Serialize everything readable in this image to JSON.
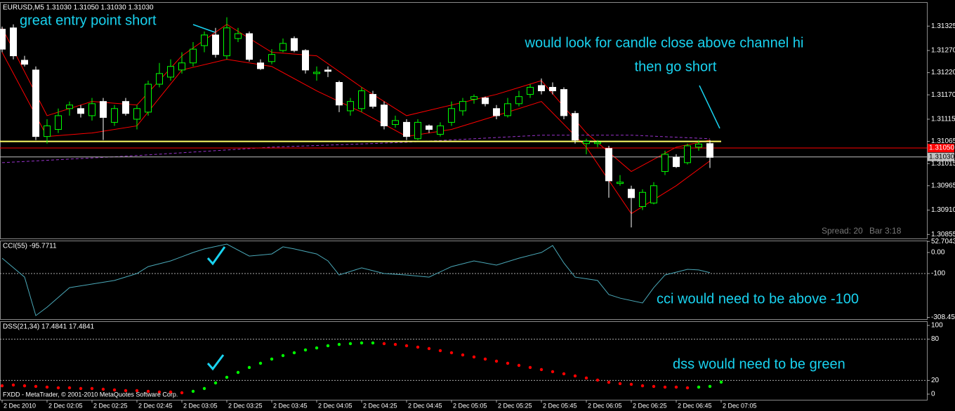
{
  "chart_data": [
    {
      "type": "candlestick",
      "title": "EURUSD,M5  1.31030 1.31050 1.31030 1.31030",
      "open": [
        1.31318,
        1.31321,
        1.31248,
        1.31226,
        1.31076,
        1.31092,
        1.31139,
        1.31139,
        1.31123,
        1.31155,
        1.31108,
        1.31155,
        1.31115,
        1.31131,
        1.31194,
        1.3121,
        1.31226,
        1.31242,
        1.31281,
        1.31305,
        1.31258,
        1.31297,
        1.31308,
        1.31242,
        1.31245,
        1.3127,
        1.31297,
        1.3127,
        1.31218,
        1.31226,
        1.31198,
        1.31134,
        1.31139,
        1.31171,
        1.31147,
        1.31103,
        1.31108,
        1.31071,
        1.311,
        1.31081,
        1.31108,
        1.31134,
        1.3116,
        1.31163,
        1.31139,
        1.31123,
        1.3115,
        1.31171,
        1.31191,
        1.31187,
        1.31182,
        1.31128,
        1.3106,
        1.3106,
        1.31049,
        1.3097,
        1.30957,
        1.30918,
        1.30926,
        1.30997,
        1.31029,
        1.31017,
        1.31052,
        1.3106
      ],
      "high": [
        1.31324,
        1.31329,
        1.31258,
        1.31234,
        1.31115,
        1.31139,
        1.31155,
        1.31147,
        1.31163,
        1.31163,
        1.31147,
        1.31163,
        1.31147,
        1.31202,
        1.31242,
        1.3125,
        1.31266,
        1.31289,
        1.31313,
        1.31321,
        1.31345,
        1.31321,
        1.31313,
        1.3125,
        1.31273,
        1.31297,
        1.31302,
        1.31273,
        1.31234,
        1.31234,
        1.31202,
        1.31163,
        1.31187,
        1.31179,
        1.31155,
        1.31123,
        1.31115,
        1.31115,
        1.31103,
        1.31108,
        1.31155,
        1.31163,
        1.31171,
        1.31166,
        1.31147,
        1.31163,
        1.31179,
        1.31194,
        1.31207,
        1.31198,
        1.31187,
        1.31134,
        1.31071,
        1.31068,
        1.31055,
        1.30989,
        1.30965,
        1.30957,
        1.30973,
        1.31044,
        1.31036,
        1.3106,
        1.31068,
        1.31068
      ],
      "low": [
        1.31266,
        1.3125,
        1.31234,
        1.31068,
        1.3106,
        1.31084,
        1.31123,
        1.31119,
        1.31112,
        1.31068,
        1.311,
        1.31123,
        1.31092,
        1.31123,
        1.31187,
        1.31202,
        1.31218,
        1.31234,
        1.31266,
        1.31254,
        1.3125,
        1.31289,
        1.31245,
        1.31226,
        1.31239,
        1.31266,
        1.31266,
        1.31218,
        1.31202,
        1.3121,
        1.31131,
        1.31123,
        1.31131,
        1.31139,
        1.31092,
        1.31096,
        1.31068,
        1.31068,
        1.31084,
        1.31076,
        1.311,
        1.31123,
        1.3115,
        1.31144,
        1.31115,
        1.31119,
        1.31144,
        1.31163,
        1.31171,
        1.31171,
        1.31115,
        1.3106,
        1.31036,
        1.31052,
        1.30938,
        1.30965,
        1.30871,
        1.3091,
        1.30923,
        1.30989,
        1.31005,
        1.31013,
        1.31044,
        1.31005
      ],
      "close": [
        1.31273,
        1.31258,
        1.31239,
        1.31076,
        1.311,
        1.31123,
        1.31147,
        1.31128,
        1.3115,
        1.31119,
        1.31139,
        1.31128,
        1.31139,
        1.31194,
        1.31218,
        1.31234,
        1.31242,
        1.31273,
        1.31305,
        1.31261,
        1.31321,
        1.31308,
        1.3125,
        1.31229,
        1.31261,
        1.31286,
        1.3127,
        1.31226,
        1.31221,
        1.31223,
        1.31147,
        1.31155,
        1.31179,
        1.31144,
        1.311,
        1.31112,
        1.31076,
        1.31108,
        1.31092,
        1.311,
        1.31139,
        1.31155,
        1.31166,
        1.3115,
        1.31123,
        1.3115,
        1.31166,
        1.31187,
        1.31179,
        1.31179,
        1.31123,
        1.31068,
        1.31065,
        1.31063,
        1.30976,
        1.30973,
        1.30938,
        1.3095,
        1.30965,
        1.31036,
        1.31008,
        1.31055,
        1.31059,
        1.31029
      ],
      "up_color": "#00ff00",
      "down_color": "#ffffff",
      "lines": [
        {
          "x": [
            0,
            4,
            8,
            12,
            16,
            20,
            24,
            28,
            32,
            36,
            40,
            44,
            48,
            52,
            56,
            60,
            63
          ],
          "values": [
            1.31321,
            1.31123,
            1.31155,
            1.31147,
            1.31258,
            1.31329,
            1.31266,
            1.31258,
            1.31187,
            1.31123,
            1.31147,
            1.31171,
            1.31202,
            1.31084,
            1.30997,
            1.31052,
            1.31068
          ],
          "color": "#ff0000"
        },
        {
          "x": [
            0,
            4,
            8,
            12,
            16,
            20,
            24,
            28,
            32,
            36,
            40,
            44,
            48,
            52,
            56,
            60,
            63
          ],
          "values": [
            1.31266,
            1.31076,
            1.31084,
            1.311,
            1.31226,
            1.3125,
            1.31234,
            1.31179,
            1.31131,
            1.31076,
            1.31092,
            1.31123,
            1.31155,
            1.31052,
            1.30902,
            1.30965,
            1.31021
          ],
          "color": "#ff0000"
        },
        {
          "x": [
            0,
            12,
            24,
            36,
            48,
            56,
            63
          ],
          "values": [
            1.31017,
            1.31033,
            1.31052,
            1.31063,
            1.31079,
            1.31079,
            1.31071
          ],
          "color": "#9933cc",
          "dashed": true
        }
      ],
      "hlines": [
        {
          "value": 1.31065,
          "color": "#ffff66"
        },
        {
          "value": 1.3105,
          "label": "1.31050",
          "color": "#ff0000"
        },
        {
          "value": 1.3103,
          "label": "1.31030",
          "color": "#c0c0c0"
        }
      ],
      "ylim": [
        1.30846,
        1.31376
      ],
      "yticks": [
        1.31325,
        {
          "value": 1.3127,
          "label": "1.31270"
        },
        {
          "value": 1.3122,
          "label": "1.31220"
        },
        {
          "value": 1.3117,
          "label": "1.31170"
        },
        1.31115,
        1.31065,
        1.31015,
        1.30965,
        {
          "value": 1.3091,
          "label": "1.30910"
        },
        1.30855
      ],
      "annotations": [
        "great entry point short",
        "would look for  candle close above channel hi",
        "then go short"
      ],
      "status": [
        "Spread: 20",
        "Bar  3:18"
      ]
    },
    {
      "type": "line",
      "title": "CCI(55) -95.7711",
      "x": [
        0,
        2,
        3,
        4,
        6,
        8,
        10,
        12,
        13,
        15,
        17,
        18,
        20,
        22,
        24,
        25,
        26,
        28,
        29,
        30,
        32,
        34,
        36,
        38,
        40,
        42,
        44,
        46,
        48,
        49,
        50,
        51,
        53,
        54,
        55,
        57,
        58,
        59,
        61,
        62,
        63
      ],
      "values": [
        -27,
        -117,
        -300,
        -260,
        -167,
        -150,
        -133,
        -100,
        -67,
        -40,
        0,
        17,
        40,
        -17,
        -7,
        27,
        17,
        -7,
        -40,
        -107,
        -73,
        -100,
        -107,
        -117,
        -67,
        -40,
        -60,
        -27,
        0,
        33,
        -50,
        -117,
        -133,
        -200,
        -217,
        -240,
        -167,
        -107,
        -80,
        -83,
        -96
      ],
      "color": "#4aa8b8",
      "ylim": [
        -308.451,
        52.7043
      ],
      "yticks": [
        52.7043,
        {
          "value": 0,
          "label": "0.00"
        },
        -100,
        -308.451
      ],
      "levels": [
        -100
      ],
      "annotations": [
        "cci would need to be above -100"
      ]
    },
    {
      "type": "scatter",
      "title": "DSS(21,34) 17.4841 17.4841",
      "x": [
        0,
        1,
        2,
        3,
        4,
        5,
        6,
        7,
        8,
        9,
        10,
        11,
        12,
        13,
        14,
        15,
        16,
        17,
        18,
        19,
        20,
        21,
        22,
        23,
        24,
        25,
        26,
        27,
        28,
        29,
        30,
        31,
        32,
        33,
        34,
        35,
        36,
        37,
        38,
        39,
        40,
        41,
        42,
        43,
        44,
        45,
        46,
        47,
        48,
        49,
        50,
        51,
        52,
        53,
        54,
        55,
        56,
        57,
        58,
        59,
        60,
        61,
        62,
        63,
        64
      ],
      "values": [
        12.2,
        13.3,
        12.2,
        11.2,
        10.2,
        9.2,
        9.2,
        8.2,
        8.2,
        7.1,
        6.1,
        5.1,
        5.1,
        4.1,
        3.1,
        3.1,
        2.0,
        4.1,
        8.2,
        16.3,
        24.5,
        31.6,
        38.8,
        44.9,
        51.0,
        56.1,
        60.2,
        64.3,
        67.3,
        70.4,
        72.4,
        73.5,
        74.5,
        74.5,
        73.5,
        72.4,
        70.4,
        68.4,
        66.3,
        63.3,
        60.2,
        57.1,
        54.1,
        51.0,
        48.0,
        44.9,
        41.8,
        38.8,
        35.7,
        32.7,
        29.6,
        26.5,
        23.5,
        20.4,
        17.3,
        15.3,
        14.3,
        12.2,
        11.2,
        10.2,
        10.2,
        9.2,
        10.2,
        11.2,
        17.5
      ],
      "colors": [
        "#ff0000",
        "#ff0000",
        "#ff0000",
        "#ff0000",
        "#ff0000",
        "#ff0000",
        "#ff0000",
        "#ff0000",
        "#ff0000",
        "#ff0000",
        "#ff0000",
        "#ff0000",
        "#ff0000",
        "#ff0000",
        "#ff0000",
        "#ff0000",
        "#ff0000",
        "#00ff00",
        "#00ff00",
        "#00ff00",
        "#00ff00",
        "#00ff00",
        "#00ff00",
        "#00ff00",
        "#00ff00",
        "#00ff00",
        "#00ff00",
        "#00ff00",
        "#00ff00",
        "#00ff00",
        "#00ff00",
        "#00ff00",
        "#00ff00",
        "#00ff00",
        "#ff0000",
        "#ff0000",
        "#ff0000",
        "#ff0000",
        "#ff0000",
        "#ff0000",
        "#ff0000",
        "#ff0000",
        "#ff0000",
        "#ff0000",
        "#ff0000",
        "#ff0000",
        "#ff0000",
        "#ff0000",
        "#ff0000",
        "#ff0000",
        "#ff0000",
        "#ff0000",
        "#ff0000",
        "#ff0000",
        "#ff0000",
        "#ff0000",
        "#ff0000",
        "#ff0000",
        "#ff0000",
        "#ff0000",
        "#ff0000",
        "#ff0000",
        "#00ff00",
        "#00ff00",
        "#00ff00"
      ],
      "ylim": [
        -8,
        106
      ],
      "yticks": [
        100,
        80,
        20,
        0
      ],
      "levels": [
        80,
        20
      ],
      "annotations": [
        "dss would need to be green"
      ],
      "footer": "FXDD - MetaTrader, © 2001-2010 MetaQuotes Software Corp.",
      "xticks": [
        {
          "value": 0,
          "label": "2 Dec 2010"
        },
        {
          "value": 4,
          "label": "2 Dec 02:05"
        },
        {
          "value": 8,
          "label": "2 Dec 02:25"
        },
        {
          "value": 12,
          "label": "2 Dec 02:45"
        },
        {
          "value": 16,
          "label": "2 Dec 03:05"
        },
        {
          "value": 20,
          "label": "2 Dec 03:25"
        },
        {
          "value": 24,
          "label": "2 Dec 03:45"
        },
        {
          "value": 28,
          "label": "2 Dec 04:05"
        },
        {
          "value": 32,
          "label": "2 Dec 04:25"
        },
        {
          "value": 36,
          "label": "2 Dec 04:45"
        },
        {
          "value": 40,
          "label": "2 Dec 05:05"
        },
        {
          "value": 44,
          "label": "2 Dec 05:25"
        },
        {
          "value": 48,
          "label": "2 Dec 05:45"
        },
        {
          "value": 52,
          "label": "2 Dec 06:05"
        },
        {
          "value": 56,
          "label": "2 Dec 06:25"
        },
        {
          "value": 60,
          "label": "2 Dec 06:45"
        },
        {
          "value": 64,
          "label": "2 Dec 07:05"
        }
      ]
    }
  ]
}
